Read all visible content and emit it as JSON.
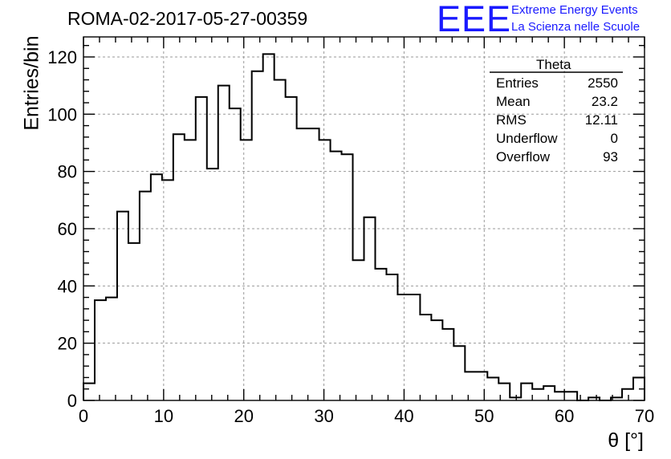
{
  "title": "ROMA-02-2017-05-27-00359",
  "logo": {
    "mark": "EEE",
    "line1": "Extreme Energy Events",
    "line2": "La Scienza nelle Scuole",
    "color": "#1a1aff"
  },
  "stats": {
    "title": "Theta",
    "rows": [
      {
        "key": "Entries",
        "value": "2550"
      },
      {
        "key": "Mean",
        "value": "23.2"
      },
      {
        "key": "RMS",
        "value": "12.11"
      },
      {
        "key": "Underflow",
        "value": "0"
      },
      {
        "key": "Overflow",
        "value": "93"
      }
    ]
  },
  "chart_data": {
    "type": "histogram",
    "xlabel": "θ [°]",
    "ylabel": "Entries/bin",
    "xlim": [
      0,
      70
    ],
    "ylim": [
      0,
      127
    ],
    "grid": true,
    "bin_width": 1.4,
    "x_ticks": [
      0,
      10,
      20,
      30,
      40,
      50,
      60,
      70
    ],
    "y_ticks": [
      0,
      20,
      40,
      60,
      80,
      100,
      120
    ],
    "values": [
      6,
      35,
      36,
      66,
      55,
      73,
      79,
      77,
      93,
      91,
      106,
      81,
      110,
      102,
      91,
      115,
      121,
      112,
      106,
      95,
      95,
      91,
      87,
      86,
      49,
      64,
      46,
      44,
      37,
      37,
      30,
      28,
      25,
      19,
      10,
      10,
      8,
      6,
      1,
      6,
      4,
      5,
      3,
      3,
      0,
      1,
      0,
      1,
      4,
      8
    ]
  }
}
